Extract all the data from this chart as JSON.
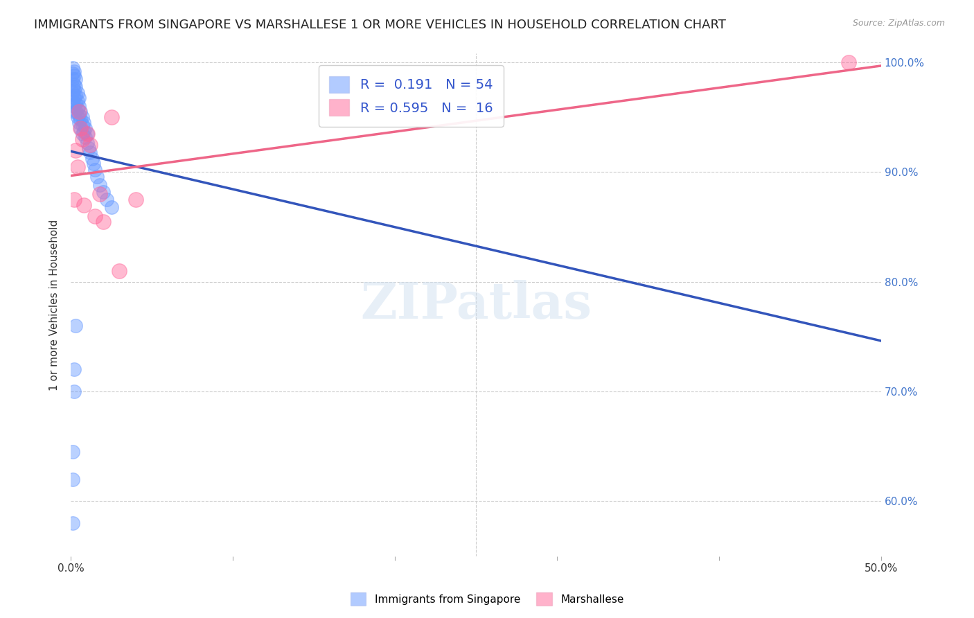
{
  "title": "IMMIGRANTS FROM SINGAPORE VS MARSHALLESE 1 OR MORE VEHICLES IN HOUSEHOLD CORRELATION CHART",
  "source": "Source: ZipAtlas.com",
  "ylabel": "1 or more Vehicles in Household",
  "xmin": 0.0,
  "xmax": 0.5,
  "ymin": 0.55,
  "ymax": 1.008,
  "x_ticks": [
    0.0,
    0.1,
    0.2,
    0.3,
    0.4,
    0.5
  ],
  "y_ticks": [
    0.6,
    0.7,
    0.8,
    0.9,
    1.0
  ],
  "singapore_R": 0.191,
  "singapore_N": 54,
  "marshallese_R": 0.595,
  "marshallese_N": 16,
  "singapore_color": "#6699ff",
  "marshallese_color": "#ff6699",
  "singapore_scatter_x": [
    0.001,
    0.001,
    0.001,
    0.001,
    0.001,
    0.001,
    0.002,
    0.002,
    0.002,
    0.002,
    0.002,
    0.002,
    0.002,
    0.003,
    0.003,
    0.003,
    0.003,
    0.003,
    0.004,
    0.004,
    0.004,
    0.004,
    0.005,
    0.005,
    0.005,
    0.005,
    0.006,
    0.006,
    0.006,
    0.007,
    0.007,
    0.007,
    0.008,
    0.008,
    0.009,
    0.009,
    0.01,
    0.01,
    0.011,
    0.012,
    0.013,
    0.014,
    0.015,
    0.016,
    0.018,
    0.02,
    0.022,
    0.025,
    0.001,
    0.001,
    0.001,
    0.002,
    0.002,
    0.003
  ],
  "singapore_scatter_y": [
    0.995,
    0.99,
    0.985,
    0.978,
    0.972,
    0.965,
    0.992,
    0.988,
    0.98,
    0.975,
    0.968,
    0.96,
    0.955,
    0.985,
    0.978,
    0.97,
    0.963,
    0.956,
    0.972,
    0.965,
    0.958,
    0.95,
    0.968,
    0.96,
    0.952,
    0.945,
    0.955,
    0.948,
    0.94,
    0.95,
    0.943,
    0.935,
    0.945,
    0.937,
    0.94,
    0.932,
    0.935,
    0.927,
    0.922,
    0.918,
    0.912,
    0.908,
    0.902,
    0.896,
    0.888,
    0.882,
    0.875,
    0.868,
    0.645,
    0.62,
    0.58,
    0.72,
    0.7,
    0.76
  ],
  "marshallese_scatter_x": [
    0.002,
    0.003,
    0.004,
    0.005,
    0.006,
    0.007,
    0.008,
    0.01,
    0.012,
    0.015,
    0.018,
    0.02,
    0.025,
    0.03,
    0.04,
    0.48
  ],
  "marshallese_scatter_y": [
    0.875,
    0.92,
    0.905,
    0.955,
    0.94,
    0.93,
    0.87,
    0.935,
    0.925,
    0.86,
    0.88,
    0.855,
    0.95,
    0.81,
    0.875,
    1.0
  ],
  "legend_labels": [
    "Immigrants from Singapore",
    "Marshallese"
  ],
  "background_color": "#ffffff",
  "grid_color": "#cccccc",
  "title_fontsize": 13,
  "axis_label_fontsize": 11,
  "tick_fontsize": 11,
  "legend_fontsize": 14,
  "watermark": "ZIPatlas"
}
